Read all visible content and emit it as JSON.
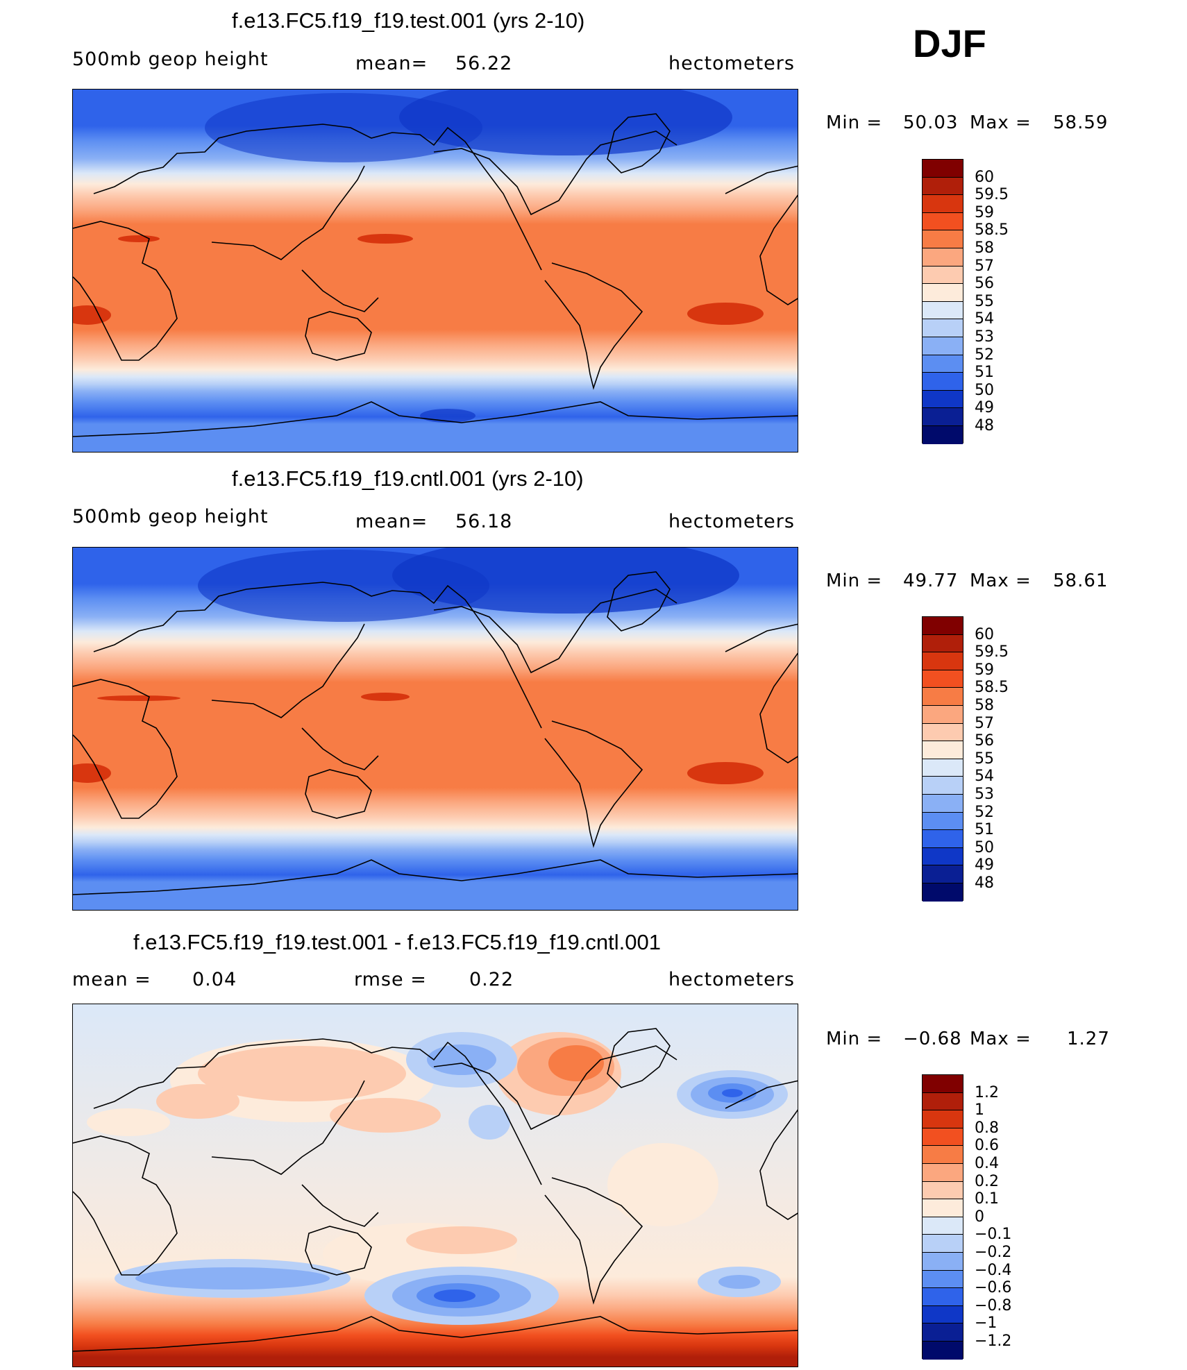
{
  "season": "DJF",
  "units": "hectometers",
  "variable": "500mb  geop  height",
  "chart_data": [
    {
      "type": "heatmap",
      "title": "f.e13.FC5.f19_f19.test.001 (yrs 2-10)",
      "subtitle_left": "500mb  geop  height",
      "mean_label": "mean=",
      "mean": "56.22",
      "units": "hectometers",
      "min_label": "Min  =",
      "min": "50.03",
      "max_label": "Max  =",
      "max": "58.59",
      "colorbar_levels": [
        "60",
        "59.5",
        "59",
        "58.5",
        "58",
        "57",
        "56",
        "55",
        "54",
        "53",
        "52",
        "51",
        "50",
        "49",
        "48"
      ]
    },
    {
      "type": "heatmap",
      "title": "f.e13.FC5.f19_f19.cntl.001 (yrs 2-10)",
      "subtitle_left": "500mb  geop  height",
      "mean_label": "mean=",
      "mean": "56.18",
      "units": "hectometers",
      "min_label": "Min  =",
      "min": "49.77",
      "max_label": "Max  =",
      "max": "58.61",
      "colorbar_levels": [
        "60",
        "59.5",
        "59",
        "58.5",
        "58",
        "57",
        "56",
        "55",
        "54",
        "53",
        "52",
        "51",
        "50",
        "49",
        "48"
      ]
    },
    {
      "type": "heatmap",
      "title": "f.e13.FC5.f19_f19.test.001 - f.e13.FC5.f19_f19.cntl.001",
      "mean_label": "mean  =",
      "mean": "0.04",
      "rmse_label": "rmse  =",
      "rmse": "0.22",
      "units": "hectometers",
      "min_label": "Min  =",
      "min": "−0.68",
      "max_label": "Max  =",
      "max": "1.27",
      "colorbar_levels": [
        "1.2",
        "1",
        "0.8",
        "0.6",
        "0.4",
        "0.2",
        "0.1",
        "0",
        "−0.1",
        "−0.2",
        "−0.4",
        "−0.6",
        "−0.8",
        "−1",
        "−1.2"
      ]
    }
  ],
  "colors": {
    "abs_scale": [
      "#800000",
      "#b01f0a",
      "#d8360f",
      "#f25020",
      "#f77c45",
      "#fba77f",
      "#fdcbb0",
      "#fdebdb",
      "#dbe8f8",
      "#b8d0f7",
      "#8ab0f5",
      "#5c8ef2",
      "#2f63ea",
      "#0f37c7",
      "#0a1f94",
      "#000a6b"
    ],
    "diff_scale": [
      "#800000",
      "#b01f0a",
      "#d8360f",
      "#f25020",
      "#f77c45",
      "#fba77f",
      "#fdcbb0",
      "#fdebdb",
      "#dbe8f8",
      "#b8d0f7",
      "#8ab0f5",
      "#5c8ef2",
      "#2f63ea",
      "#0f37c7",
      "#0a1f94",
      "#000a6b"
    ]
  }
}
